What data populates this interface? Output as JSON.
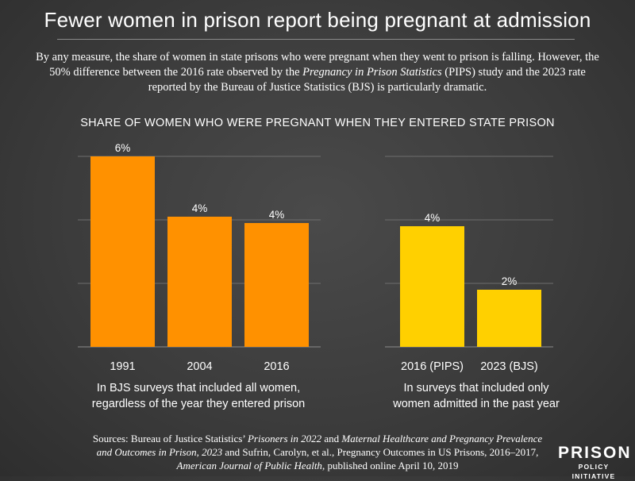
{
  "title": "Fewer women in prison report being pregnant at admission",
  "intro": {
    "p1": "By any measure, the share of women in state prisons who were pregnant when they went to prison is falling. However, the 50% difference between the 2016 rate observed by the ",
    "p1_italic": "Pregnancy in Prison Statistics",
    "p2": " (PIPS) study and the 2023 rate reported by the Bureau of Justice Statistics (BJS) is particularly dramatic."
  },
  "chart_data": [
    {
      "type": "bar",
      "title": "SHARE OF WOMEN WHO WERE PREGNANT WHEN THEY ENTERED STATE PRISON",
      "categories": [
        "1991",
        "2004",
        "2016"
      ],
      "values": [
        6,
        4.1,
        3.9
      ],
      "value_labels": [
        "6%",
        "4%",
        "4%"
      ],
      "ylim": [
        0,
        6
      ],
      "gridlines": [
        0,
        2,
        4,
        6
      ],
      "color": "#ff9100",
      "caption_line1": "In BJS surveys that included all women,",
      "caption_line2": "regardless of the year they entered prison"
    },
    {
      "type": "bar",
      "categories": [
        "2016 (PIPS)",
        "2023 (BJS)"
      ],
      "values": [
        3.8,
        1.8
      ],
      "value_labels": [
        "4%",
        "2%"
      ],
      "ylim": [
        0,
        6
      ],
      "gridlines": [
        0,
        2,
        4,
        6
      ],
      "color": "#ffd000",
      "caption_line1": "In surveys that included only",
      "caption_line2": "women admitted in the past year"
    }
  ],
  "sources": {
    "s1": "Sources: Bureau of Justice Statistics’ ",
    "s1_italic": "Prisoners in 2022",
    "s2": " and ",
    "s2_italic": "Maternal Healthcare and Pregnancy Prevalence and Outcomes in Prison, 2023",
    "s3": " and Sufrin, Carolyn, et al., Pregnancy Outcomes in US Prisons, 2016–2017, ",
    "s3_italic": "American Journal of Public Health",
    "s4": ", published online April 10, 2019"
  },
  "logo": {
    "line1": "PRISON",
    "line2": "POLICY INITIATIVE"
  }
}
